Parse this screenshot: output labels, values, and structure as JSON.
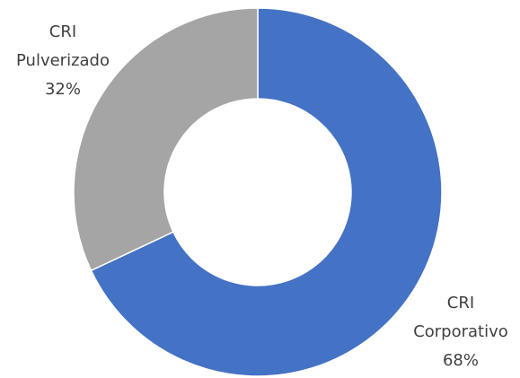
{
  "chart_data": {
    "type": "donut",
    "categories": [
      "CRI Corporativo",
      "CRI Pulverizado"
    ],
    "values": [
      68,
      32
    ],
    "value_labels": [
      "68%",
      "32%"
    ],
    "colors": [
      "#4472c4",
      "#a5a5a5"
    ]
  }
}
